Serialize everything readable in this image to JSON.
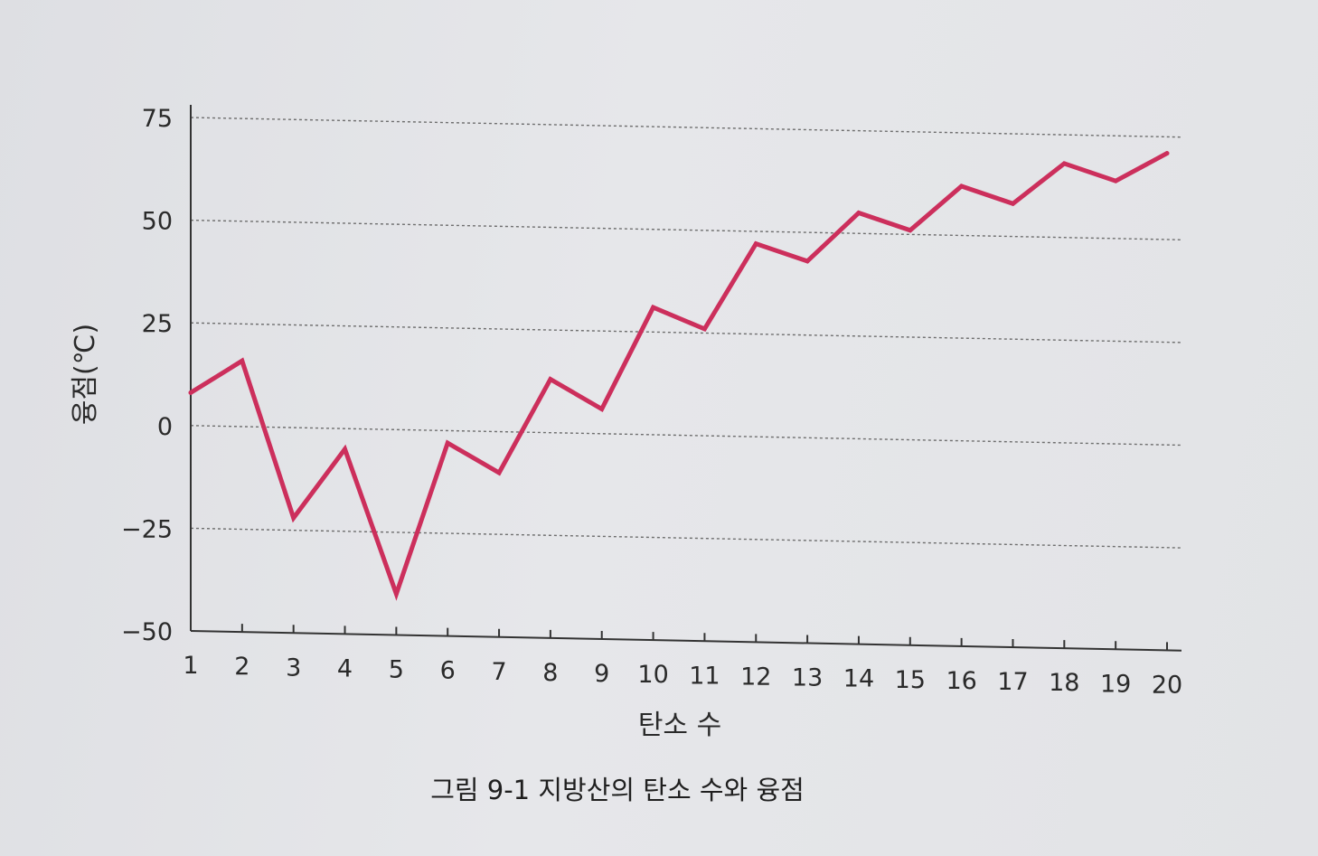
{
  "chart_data": {
    "type": "line",
    "x": [
      1,
      2,
      3,
      4,
      5,
      6,
      7,
      8,
      9,
      10,
      11,
      12,
      13,
      14,
      15,
      16,
      17,
      18,
      19,
      20
    ],
    "categories": [
      "1",
      "2",
      "3",
      "4",
      "5",
      "6",
      "7",
      "8",
      "9",
      "10",
      "11",
      "12",
      "13",
      "14",
      "15",
      "16",
      "17",
      "18",
      "19",
      "20"
    ],
    "series": [
      {
        "values": [
          8,
          16,
          -22,
          -5,
          -40,
          -3,
          -10,
          13,
          6,
          31,
          26,
          47,
          43,
          55,
          51,
          62,
          58,
          68,
          64,
          71
        ]
      }
    ],
    "xlabel": "탄소 수",
    "ylabel": "융점(℃)",
    "ylim": [
      -50,
      75
    ],
    "yticks": [
      75,
      50,
      25,
      0,
      -25,
      -50
    ],
    "ytick_labels": [
      "75",
      "50",
      "25",
      "0",
      "−25",
      "−50"
    ],
    "grid": "horizontal dotted",
    "line_color": "#cc2f5c",
    "caption": "그림 9-1  지방산의 탄소 수와 융점"
  }
}
